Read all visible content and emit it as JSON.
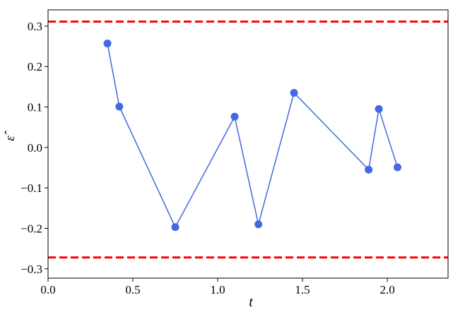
{
  "chart_data": {
    "type": "line",
    "title": "",
    "xlabel": "t",
    "ylabel": "ε̂",
    "xlim": [
      0.0,
      2.358
    ],
    "ylim": [
      -0.323,
      0.34
    ],
    "xticks": [
      0.0,
      0.5,
      1.0,
      1.5,
      2.0
    ],
    "xtick_labels": [
      "0.0",
      "0.5",
      "1.0",
      "1.5",
      "2.0"
    ],
    "yticks": [
      -0.3,
      -0.2,
      -0.1,
      0.0,
      0.1,
      0.2,
      0.3
    ],
    "ytick_labels": [
      "−0.3",
      "−0.2",
      "−0.1",
      "0.0",
      "0.1",
      "0.2",
      "0.3"
    ],
    "grid": false,
    "series": [
      {
        "color": "#4169e1",
        "marker": "circle",
        "x": [
          0.35,
          0.42,
          0.75,
          1.1,
          1.24,
          1.45,
          1.89,
          1.95,
          2.06
        ],
        "y": [
          0.257,
          0.101,
          -0.197,
          0.076,
          -0.19,
          0.135,
          -0.055,
          0.095,
          -0.049
        ]
      }
    ],
    "hlines": [
      {
        "y": 0.311,
        "color": "#ff0000",
        "style": "dashed"
      },
      {
        "y": -0.272,
        "color": "#ff0000",
        "style": "dashed"
      }
    ]
  }
}
